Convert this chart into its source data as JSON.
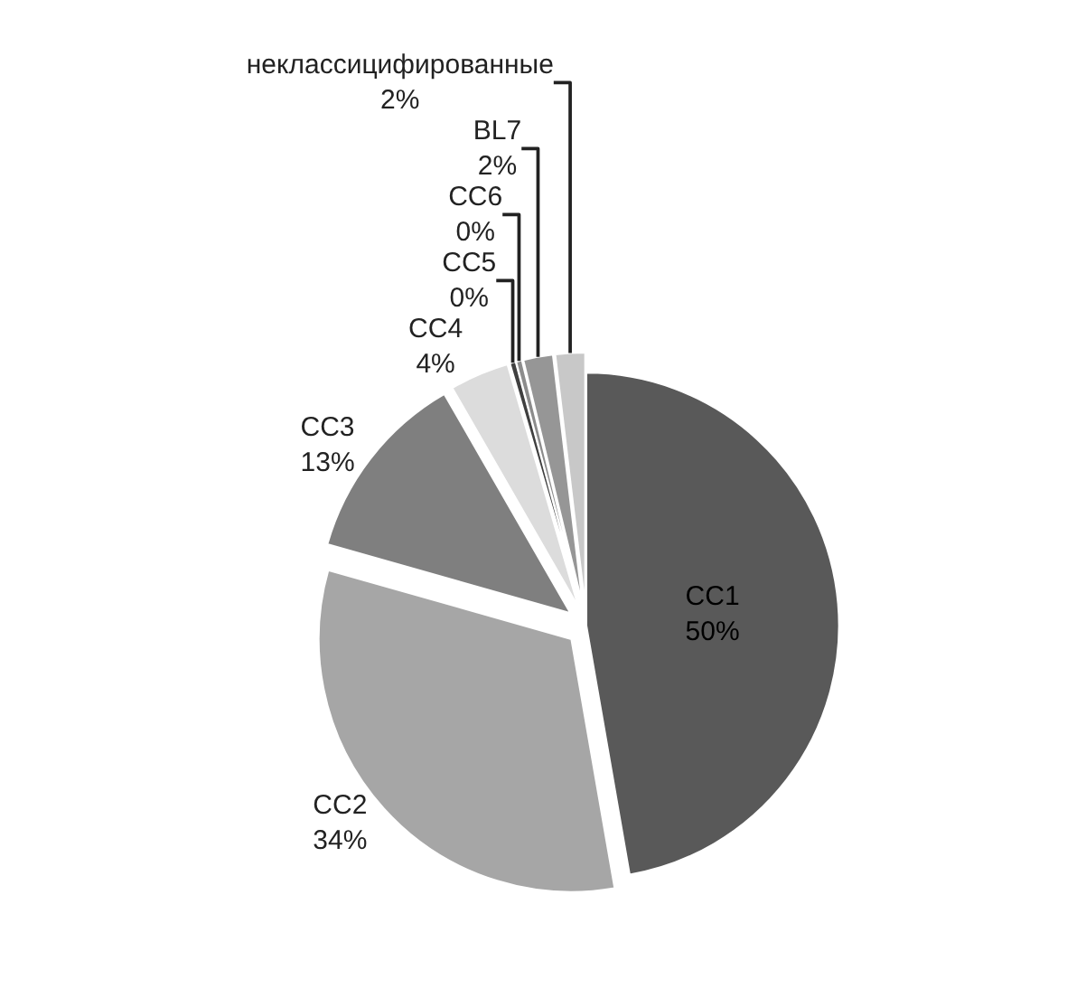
{
  "chart_data": {
    "type": "pie",
    "categories": [
      "CC1",
      "CC2",
      "CC3",
      "CC4",
      "CC5",
      "CC6",
      "BL7",
      "неклассицифированные"
    ],
    "values": [
      50,
      34,
      13,
      4,
      0.4,
      0.4,
      2,
      2
    ],
    "value_labels": [
      "50%",
      "34%",
      "13%",
      "4%",
      "0%",
      "0%",
      "2%",
      "2%"
    ],
    "colors": [
      "#595959",
      "#a6a6a6",
      "#7f7f7f",
      "#dcdcdc",
      "#404040",
      "#8c8c8c",
      "#969696",
      "#c8c8c8"
    ],
    "legend": false
  }
}
